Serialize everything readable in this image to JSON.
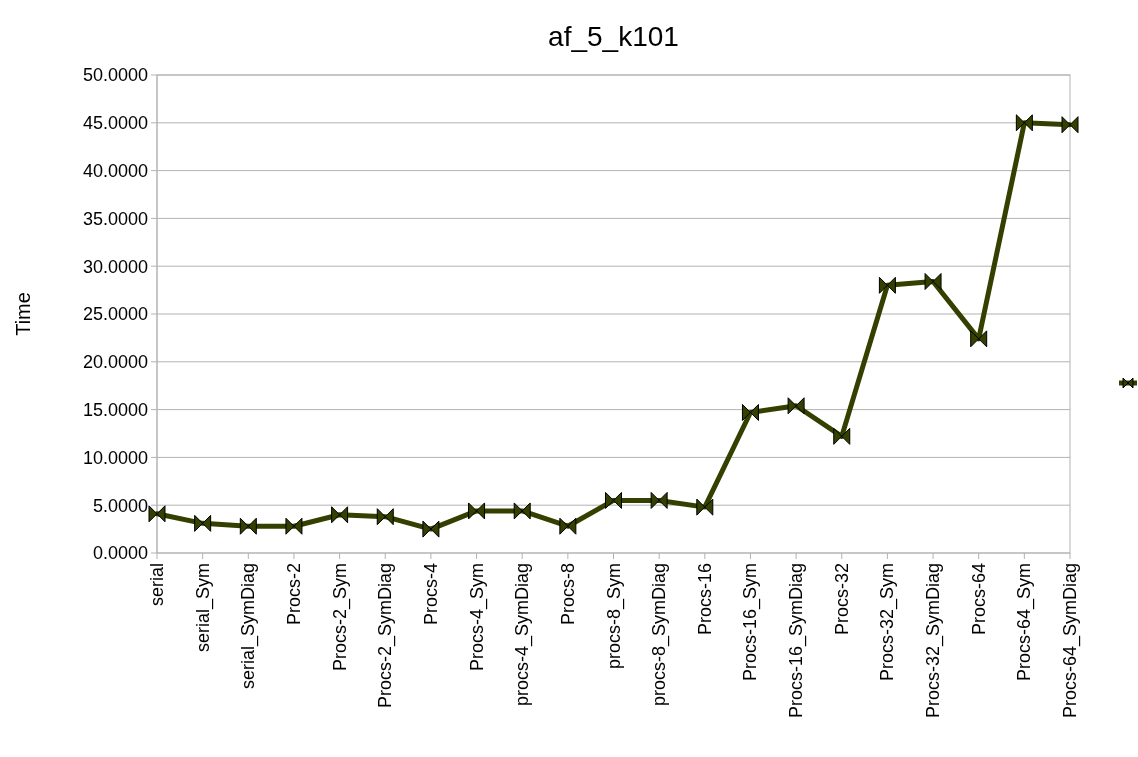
{
  "chart_data": {
    "type": "line",
    "title": "af_5_k101",
    "ylabel": "Time",
    "categories": [
      "serial",
      "serial_Sym",
      "serial_SymDiag",
      "Procs-2",
      "Procs-2_Sym",
      "Procs-2_SymDiag",
      "Procs-4",
      "Procs-4_Sym",
      "procs-4_SymDiag",
      "Procs-8",
      "procs-8_Sym",
      "procs-8_SymDiag",
      "Procs-16",
      "Procs-16_Sym",
      "Procs-16_SymDiag",
      "Procs-32",
      "Procs-32_Sym",
      "Procs-32_SymDiag",
      "Procs-64",
      "Procs-64_Sym",
      "Procs-64_SymDiag"
    ],
    "series": [
      {
        "color": "#334000",
        "values": [
          4.1,
          3.1,
          2.8,
          2.8,
          4.0,
          3.8,
          2.5,
          4.4,
          4.4,
          2.8,
          5.5,
          5.5,
          4.8,
          14.7,
          15.4,
          12.2,
          28.0,
          28.4,
          22.4,
          45.0,
          44.8
        ]
      }
    ],
    "ylim": [
      0,
      50
    ],
    "yticks": [
      {
        "value": 0,
        "label": "0.0000"
      },
      {
        "value": 5,
        "label": "5.0000"
      },
      {
        "value": 10,
        "label": "10.0000"
      },
      {
        "value": 15,
        "label": "15.0000"
      },
      {
        "value": 20,
        "label": "20.0000"
      },
      {
        "value": 25,
        "label": "25.0000"
      },
      {
        "value": 30,
        "label": "30.0000"
      },
      {
        "value": 35,
        "label": "35.0000"
      },
      {
        "value": 40,
        "label": "40.0000"
      },
      {
        "value": 45,
        "label": "45.0000"
      },
      {
        "value": 50,
        "label": "50.0000"
      }
    ],
    "grid": "y",
    "marker": "triangle",
    "line_style": "solid"
  }
}
